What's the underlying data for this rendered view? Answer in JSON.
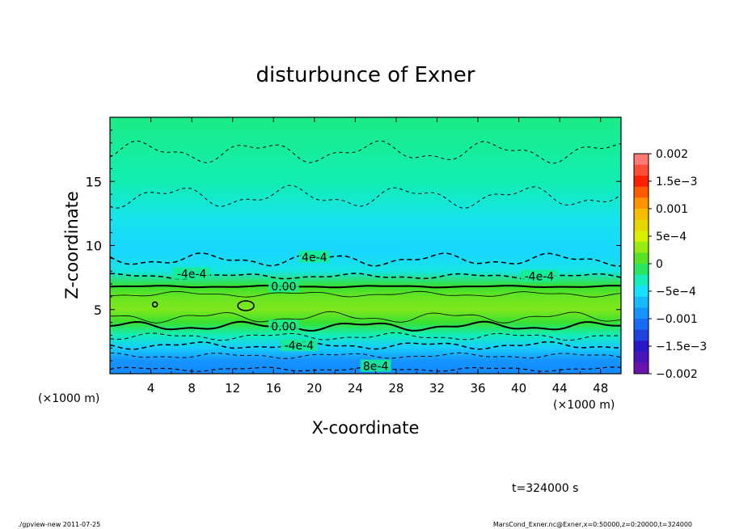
{
  "chart_data": {
    "type": "heatmap",
    "title": "disturbunce of Exner",
    "xlabel": "X-coordinate",
    "ylabel": "Z-coordinate",
    "x_unit_left": "(×1000 m)",
    "x_unit_right": "(×1000 m)",
    "xlim": [
      0,
      50
    ],
    "ylim": [
      0,
      20
    ],
    "xticks": [
      4,
      8,
      12,
      16,
      20,
      24,
      28,
      32,
      36,
      40,
      44,
      48
    ],
    "yticks": [
      5,
      10,
      15
    ],
    "colorbar": {
      "labels": [
        "0.002",
        "1.5e−3",
        "0.001",
        "5e−4",
        "0",
        "−5e−4",
        "−0.001",
        "−1.5e−3",
        "−0.002"
      ],
      "values": [
        0.002,
        0.0015,
        0.001,
        0.0005,
        0,
        -0.0005,
        -0.001,
        -0.0015,
        -0.002
      ]
    },
    "background_profile": [
      {
        "z": 0.0,
        "value": -0.00095
      },
      {
        "z": 1.0,
        "value": -0.0009
      },
      {
        "z": 2.0,
        "value": -0.0006
      },
      {
        "z": 3.0,
        "value": -0.0003
      },
      {
        "z": 4.0,
        "value": 0.0
      },
      {
        "z": 5.0,
        "value": 0.00022
      },
      {
        "z": 6.0,
        "value": 0.00015
      },
      {
        "z": 6.8,
        "value": 0.0
      },
      {
        "z": 8.0,
        "value": -0.00042
      },
      {
        "z": 9.5,
        "value": -0.00055
      },
      {
        "z": 12.0,
        "value": -0.00045
      },
      {
        "z": 15.0,
        "value": -0.00028
      },
      {
        "z": 20.0,
        "value": -0.00018
      }
    ],
    "contour_labels": [
      {
        "text": "0.00",
        "x": 17,
        "z": 6.8
      },
      {
        "text": "0.00",
        "x": 17,
        "z": 3.7
      },
      {
        "text": "-4e-4",
        "x": 8,
        "z": 7.8
      },
      {
        "text": "4e-4",
        "x": 20,
        "z": 9.1
      },
      {
        "text": "-4e-4",
        "x": 42,
        "z": 7.6
      },
      {
        "text": "-4e-4",
        "x": 18.5,
        "z": 2.2
      },
      {
        "text": "8e-4",
        "x": 26,
        "z": 0.6
      }
    ],
    "grid": false
  },
  "annotations": {
    "time": "t=324000 s",
    "footer_left": "./gpview-new  2011-07-25",
    "footer_right": "MarsCond_Exner.nc@Exner,x=0:50000,z=0:20000,t=324000"
  }
}
